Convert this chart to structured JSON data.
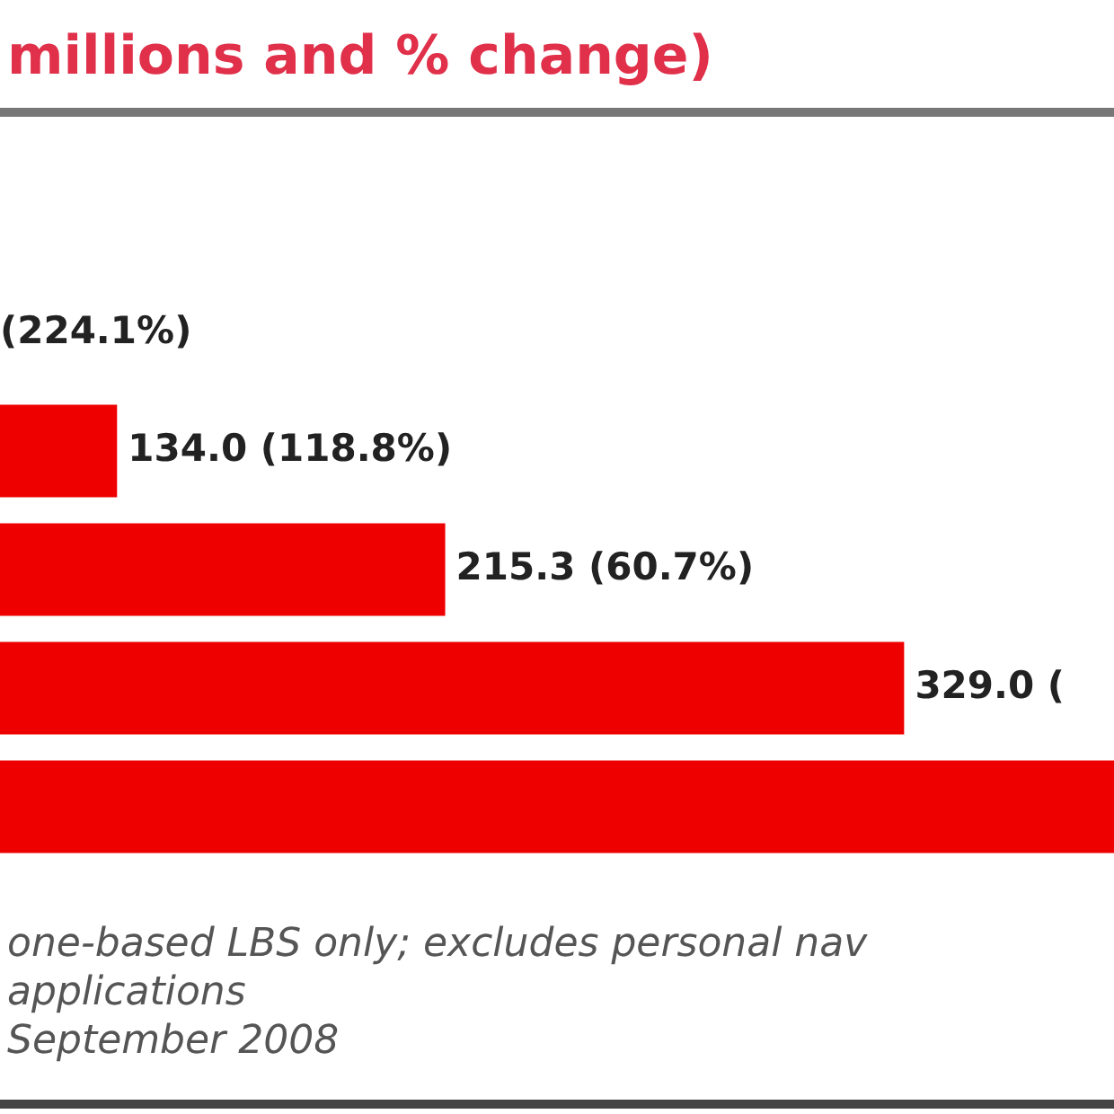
{
  "chart_data": {
    "type": "bar",
    "orientation": "horizontal",
    "title": "millions and % change)",
    "categories": [
      null,
      null,
      null,
      null
    ],
    "values": [
      134.0,
      215.3,
      329.0,
      381
    ],
    "color": "#ee0000",
    "value_labels": [
      "134.0 (118.8%)",
      "215.3 (60.7%)",
      "329.0 (",
      null
    ],
    "xlim": [
      105,
      381
    ],
    "tick_labels": false,
    "annotations": [
      "(224.1%)",
      "one-based LBS only; excludes personal nav",
      "applications",
      "September 2008"
    ]
  }
}
